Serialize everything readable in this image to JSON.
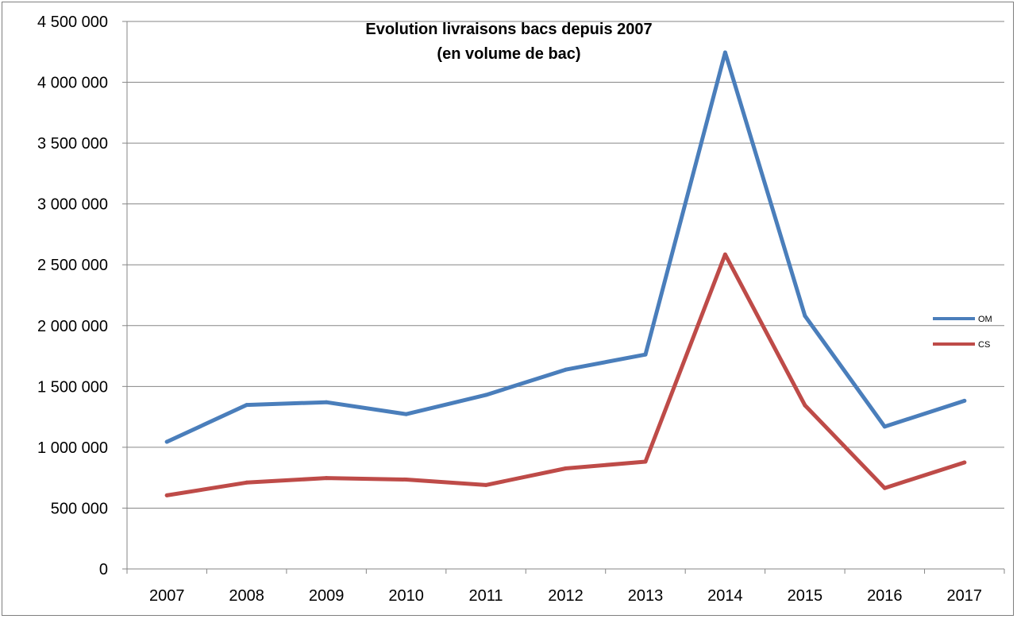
{
  "chart_data": {
    "type": "line",
    "title": "Evolution livraisons bacs depuis 2007",
    "subtitle": "(en volume de bac)",
    "xlabel": "",
    "ylabel": "",
    "categories": [
      "2007",
      "2008",
      "2009",
      "2010",
      "2011",
      "2012",
      "2013",
      "2014",
      "2015",
      "2016",
      "2017"
    ],
    "ylim": [
      0,
      4500000
    ],
    "yticks": [
      0,
      500000,
      1000000,
      1500000,
      2000000,
      2500000,
      3000000,
      3500000,
      4000000,
      4500000
    ],
    "ytick_labels": [
      "0",
      "500 000",
      "1 000 000",
      "1 500 000",
      "2 000 000",
      "2 500 000",
      "3 000 000",
      "3 500 000",
      "4 000 000",
      "4 500 000"
    ],
    "grid": true,
    "legend_position": "right",
    "series": [
      {
        "name": "OM",
        "color": "#4a7ebb",
        "values": [
          1045000,
          1348000,
          1370000,
          1272000,
          1430000,
          1638000,
          1762000,
          4245000,
          2080000,
          1170000,
          1382000
        ]
      },
      {
        "name": "CS",
        "color": "#be4b48",
        "values": [
          605000,
          710000,
          747000,
          735000,
          690000,
          826000,
          882000,
          2585000,
          1345000,
          665000,
          875000
        ]
      }
    ]
  }
}
